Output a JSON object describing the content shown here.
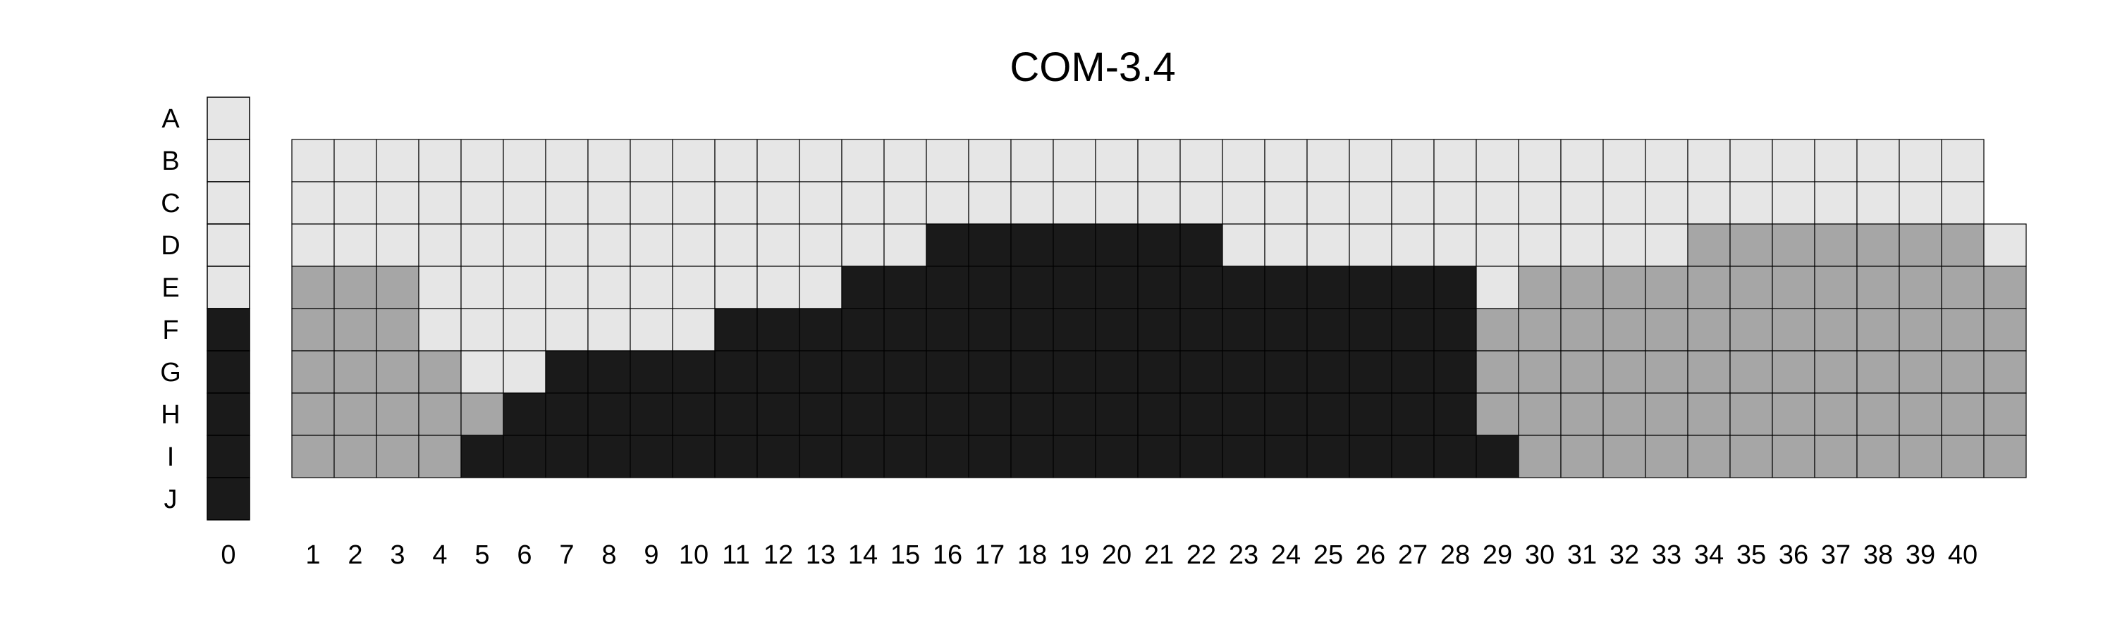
{
  "chart_data": {
    "type": "heatmap",
    "title": "COM-3.4",
    "rows": [
      "A",
      "B",
      "C",
      "D",
      "E",
      "F",
      "G",
      "H",
      "I",
      "J"
    ],
    "control_column": {
      "label": "0",
      "levels": [
        "light",
        "light",
        "light",
        "light",
        "light",
        "dark",
        "dark",
        "dark",
        "dark",
        "dark"
      ]
    },
    "columns": [
      "1",
      "2",
      "3",
      "4",
      "5",
      "6",
      "7",
      "8",
      "9",
      "10",
      "11",
      "12",
      "13",
      "14",
      "15",
      "16",
      "17",
      "18",
      "19",
      "20",
      "21",
      "22",
      "23",
      "24",
      "25",
      "26",
      "27",
      "28",
      "29",
      "30",
      "31",
      "32",
      "33",
      "34",
      "35",
      "36",
      "37",
      "38",
      "39",
      "40"
    ],
    "grid_rows": [
      "B",
      "C",
      "D",
      "E",
      "F",
      "G",
      "H",
      "I"
    ],
    "grid": [
      "LLLLLLLLLLLLLLLLLLLLLLLLLLLLLLLLLLLLLLLL",
      "LLLLLLLLLLLLLLLLLLLLLLLLLLLLLLLLLLLLLLLL",
      "LLLLLLLLLLLLLLLDDDDDDDLLLLLLLLLLLMMMMMMML",
      "MMMLLLLLLLLLLDDDDDDDDDDDDDDDLMMMMMMMMMMMM",
      "MMMLLLLLLLDDDDDDDDDDDDDDDDDDMMMMMMMMMMMMM",
      "MMMMLLDDDDDDDDDDDDDDDDDDDDDDMMMMMMMMMMMMM",
      "MMMMMDDDDDDDDDDDDDDDDDDDDDDDMMMMMMMMMMMMM",
      "MMMMDDDDDDDDDDDDDDDDDDDDDDDDDMMMMMMMMMMMM"
    ],
    "levels": {
      "L": {
        "name": "light",
        "color": "#e6e6e6"
      },
      "M": {
        "name": "medium",
        "color": "#a6a6a6"
      },
      "D": {
        "name": "dark",
        "color": "#1a1a1a"
      }
    },
    "legend": "none",
    "grid_lines": true
  }
}
